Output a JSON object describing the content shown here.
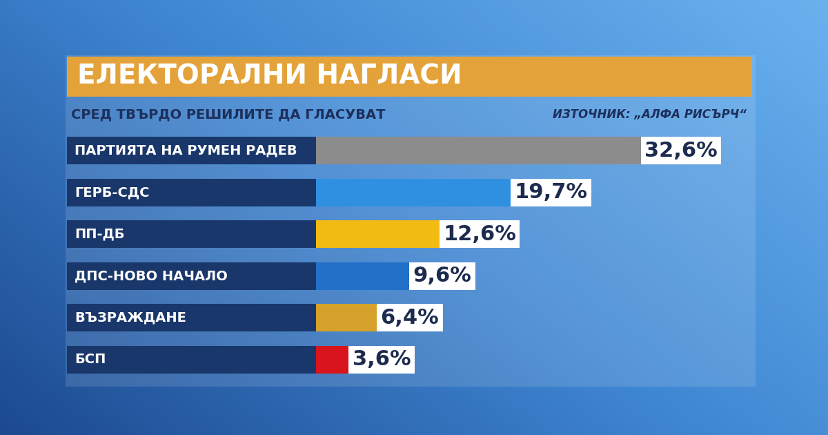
{
  "chart_data": {
    "type": "bar",
    "orientation": "horizontal",
    "title": "ЕЛЕКТОРАЛНИ НАГЛАСИ",
    "subtitle": "СРЕД ТВЪРДО РЕШИЛИТЕ ДА ГЛАСУВАТ",
    "source": "ИЗТОЧНИК: „АЛФА РИСЪРЧ“",
    "categories": [
      "ПАРТИЯТА НА РУМЕН РАДЕВ",
      "ГЕРБ-СДС",
      "ПП-ДБ",
      "ДПС-НОВО НАЧАЛО",
      "ВЪЗРАЖДАНЕ",
      "БСП"
    ],
    "values": [
      32.6,
      19.7,
      12.6,
      9.6,
      6.4,
      3.6
    ],
    "value_labels": [
      "32,6%",
      "19,7%",
      "12,6%",
      "9,6%",
      "6,4%",
      "3,6%"
    ],
    "colors": [
      "#8c8c8c",
      "#2f90e2",
      "#f2bb14",
      "#2270c8",
      "#d6a22c",
      "#d8141c"
    ],
    "xlim": [
      0,
      43
    ],
    "data_labels": true,
    "tick_labels": false,
    "grid": false
  }
}
